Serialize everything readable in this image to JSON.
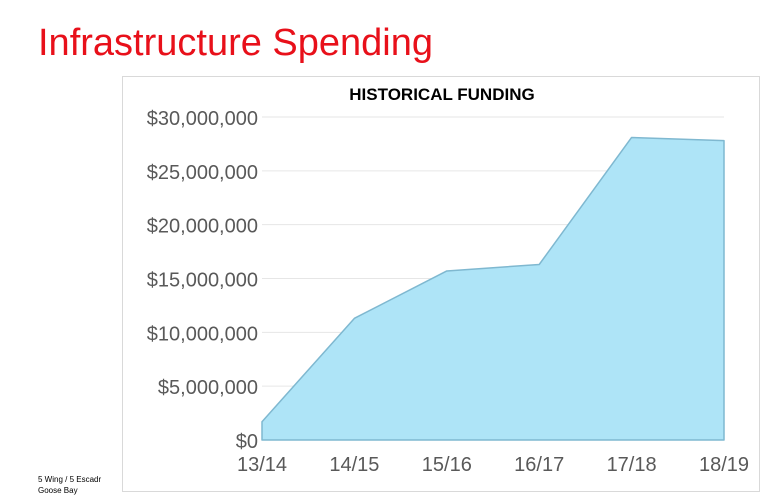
{
  "slide": {
    "title": "Infrastructure Spending",
    "footer_line1": "5 Wing / 5 Escadr",
    "footer_line2": "Goose Bay"
  },
  "colors": {
    "title": "#e8101a",
    "area_fill": "#aee4f7",
    "area_stroke": "#7fb8d0",
    "gridline": "#e6e6e6",
    "tick_text": "#595959"
  },
  "chart_data": {
    "type": "area",
    "title": "HISTORICAL FUNDING",
    "categories": [
      "13/14",
      "14/15",
      "15/16",
      "16/17",
      "17/18",
      "18/19"
    ],
    "values": [
      1700000,
      11300000,
      15700000,
      16300000,
      28100000,
      27800000
    ],
    "y_ticks": [
      "$0",
      "$5,000,000",
      "$10,000,000",
      "$15,000,000",
      "$20,000,000",
      "$25,000,000",
      "$30,000,000"
    ],
    "ylim": [
      0,
      30000000
    ],
    "grid": true,
    "legend": "none"
  }
}
